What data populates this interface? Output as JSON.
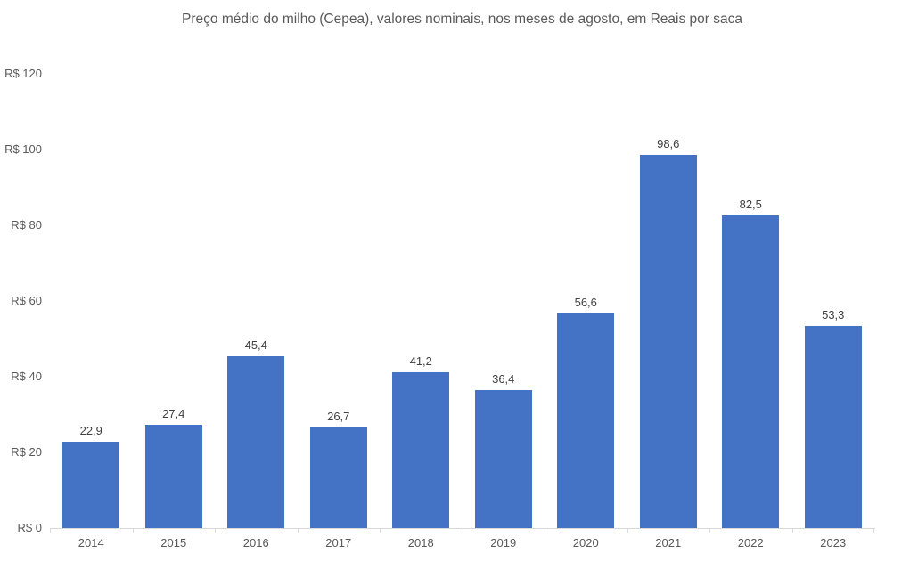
{
  "colors": {
    "bar": "#4472C4",
    "title_text": "#595959",
    "axis_text": "#595959",
    "data_label_text": "#404040",
    "axis_line": "#D9D9D9",
    "background": "#FFFFFF"
  },
  "chart_data": {
    "type": "bar",
    "title": "Preço médio do milho (Cepea), valores nominais, nos meses de agosto, em Reais por saca",
    "xlabel": "",
    "ylabel": "",
    "categories": [
      "2014",
      "2015",
      "2016",
      "2017",
      "2018",
      "2019",
      "2020",
      "2021",
      "2022",
      "2023"
    ],
    "values": [
      22.9,
      27.4,
      45.4,
      26.7,
      41.2,
      36.4,
      56.6,
      98.6,
      82.5,
      53.3
    ],
    "value_labels": [
      "22,9",
      "27,4",
      "45,4",
      "26,7",
      "41,2",
      "36,4",
      "56,6",
      "98,6",
      "82,5",
      "53,3"
    ],
    "ylim": [
      0,
      120
    ],
    "ytick_step": 20,
    "yticks": [
      {
        "value": 0,
        "label": "R$ 0"
      },
      {
        "value": 20,
        "label": "R$ 20"
      },
      {
        "value": 40,
        "label": "R$ 40"
      },
      {
        "value": 60,
        "label": "R$ 60"
      },
      {
        "value": 80,
        "label": "R$ 80"
      },
      {
        "value": 100,
        "label": "R$ 100"
      },
      {
        "value": 120,
        "label": "R$ 120"
      }
    ],
    "grid": false,
    "legend": "none",
    "currency_prefix": "R$",
    "decimal_separator": ","
  }
}
